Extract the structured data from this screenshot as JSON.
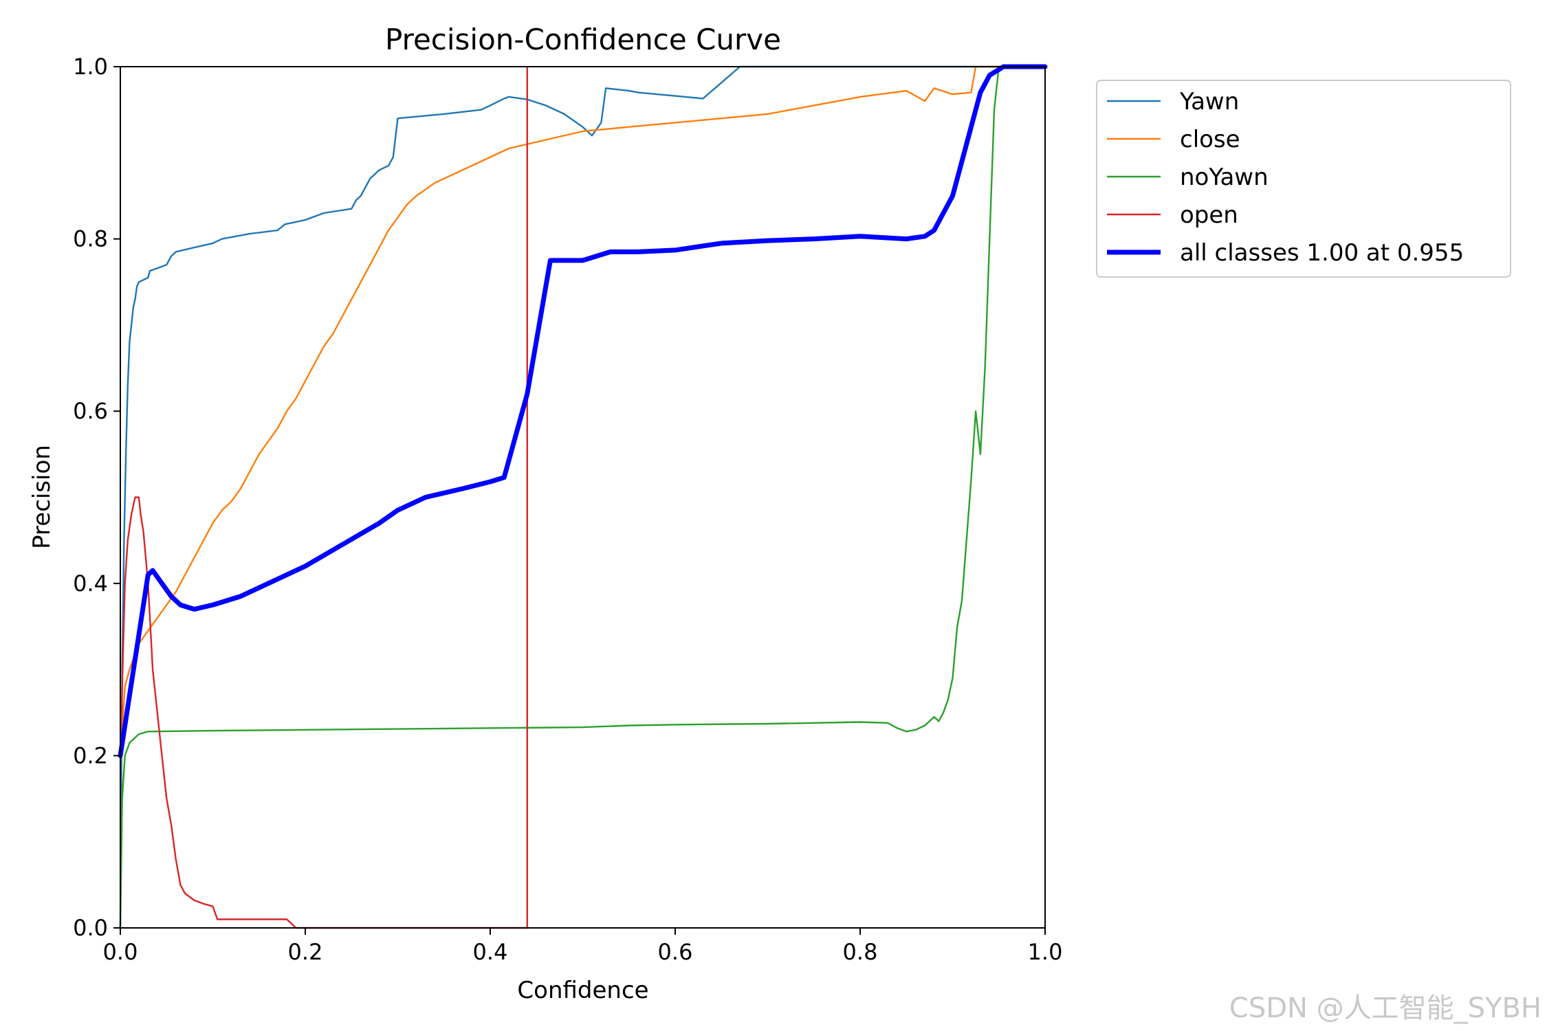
{
  "chart_data": {
    "type": "line",
    "title": "Precision-Confidence Curve",
    "xlabel": "Confidence",
    "ylabel": "Precision",
    "xlim": [
      0,
      1
    ],
    "ylim": [
      0,
      1
    ],
    "xticks": [
      "0.0",
      "0.2",
      "0.4",
      "0.6",
      "0.8",
      "1.0"
    ],
    "yticks": [
      "0.0",
      "0.2",
      "0.4",
      "0.6",
      "0.8",
      "1.0"
    ],
    "grid": false,
    "legend_position": "outside-top-right",
    "series": [
      {
        "name": "Yawn",
        "color": "#1f77b4",
        "width": "thin",
        "points": [
          [
            0.0,
            0.0
          ],
          [
            0.002,
            0.3
          ],
          [
            0.004,
            0.45
          ],
          [
            0.006,
            0.55
          ],
          [
            0.008,
            0.63
          ],
          [
            0.01,
            0.68
          ],
          [
            0.012,
            0.7
          ],
          [
            0.014,
            0.72
          ],
          [
            0.016,
            0.73
          ],
          [
            0.018,
            0.745
          ],
          [
            0.02,
            0.75
          ],
          [
            0.03,
            0.755
          ],
          [
            0.032,
            0.763
          ],
          [
            0.04,
            0.766
          ],
          [
            0.05,
            0.77
          ],
          [
            0.055,
            0.78
          ],
          [
            0.06,
            0.785
          ],
          [
            0.08,
            0.79
          ],
          [
            0.1,
            0.795
          ],
          [
            0.11,
            0.8
          ],
          [
            0.14,
            0.806
          ],
          [
            0.17,
            0.81
          ],
          [
            0.178,
            0.817
          ],
          [
            0.2,
            0.822
          ],
          [
            0.22,
            0.83
          ],
          [
            0.25,
            0.835
          ],
          [
            0.255,
            0.845
          ],
          [
            0.26,
            0.85
          ],
          [
            0.27,
            0.87
          ],
          [
            0.28,
            0.88
          ],
          [
            0.29,
            0.885
          ],
          [
            0.295,
            0.895
          ],
          [
            0.3,
            0.94
          ],
          [
            0.35,
            0.945
          ],
          [
            0.39,
            0.95
          ],
          [
            0.4,
            0.955
          ],
          [
            0.415,
            0.963
          ],
          [
            0.42,
            0.965
          ],
          [
            0.44,
            0.962
          ],
          [
            0.46,
            0.955
          ],
          [
            0.48,
            0.945
          ],
          [
            0.5,
            0.93
          ],
          [
            0.51,
            0.92
          ],
          [
            0.52,
            0.935
          ],
          [
            0.525,
            0.975
          ],
          [
            0.55,
            0.972
          ],
          [
            0.56,
            0.97
          ],
          [
            0.6,
            0.966
          ],
          [
            0.63,
            0.963
          ],
          [
            0.67,
            1.0
          ],
          [
            1.0,
            1.0
          ]
        ]
      },
      {
        "name": "close",
        "color": "#ff7f0e",
        "width": "thin",
        "points": [
          [
            0.0,
            0.2
          ],
          [
            0.005,
            0.28
          ],
          [
            0.01,
            0.3
          ],
          [
            0.02,
            0.33
          ],
          [
            0.03,
            0.345
          ],
          [
            0.04,
            0.36
          ],
          [
            0.05,
            0.375
          ],
          [
            0.06,
            0.39
          ],
          [
            0.07,
            0.41
          ],
          [
            0.08,
            0.43
          ],
          [
            0.09,
            0.45
          ],
          [
            0.1,
            0.47
          ],
          [
            0.11,
            0.485
          ],
          [
            0.12,
            0.495
          ],
          [
            0.13,
            0.51
          ],
          [
            0.14,
            0.53
          ],
          [
            0.15,
            0.55
          ],
          [
            0.16,
            0.565
          ],
          [
            0.17,
            0.58
          ],
          [
            0.18,
            0.6
          ],
          [
            0.19,
            0.615
          ],
          [
            0.2,
            0.635
          ],
          [
            0.21,
            0.655
          ],
          [
            0.22,
            0.675
          ],
          [
            0.23,
            0.69
          ],
          [
            0.24,
            0.71
          ],
          [
            0.25,
            0.73
          ],
          [
            0.26,
            0.75
          ],
          [
            0.27,
            0.77
          ],
          [
            0.28,
            0.79
          ],
          [
            0.29,
            0.81
          ],
          [
            0.3,
            0.825
          ],
          [
            0.31,
            0.84
          ],
          [
            0.32,
            0.85
          ],
          [
            0.34,
            0.865
          ],
          [
            0.36,
            0.875
          ],
          [
            0.38,
            0.885
          ],
          [
            0.4,
            0.895
          ],
          [
            0.42,
            0.905
          ],
          [
            0.44,
            0.91
          ],
          [
            0.46,
            0.915
          ],
          [
            0.5,
            0.925
          ],
          [
            0.55,
            0.93
          ],
          [
            0.6,
            0.935
          ],
          [
            0.65,
            0.94
          ],
          [
            0.7,
            0.945
          ],
          [
            0.75,
            0.955
          ],
          [
            0.8,
            0.965
          ],
          [
            0.85,
            0.972
          ],
          [
            0.87,
            0.96
          ],
          [
            0.88,
            0.975
          ],
          [
            0.9,
            0.968
          ],
          [
            0.92,
            0.97
          ],
          [
            0.925,
            1.0
          ],
          [
            1.0,
            1.0
          ]
        ]
      },
      {
        "name": "noYawn",
        "color": "#2ca02c",
        "width": "thin",
        "points": [
          [
            0.0,
            0.0
          ],
          [
            0.002,
            0.15
          ],
          [
            0.005,
            0.2
          ],
          [
            0.01,
            0.215
          ],
          [
            0.02,
            0.225
          ],
          [
            0.03,
            0.228
          ],
          [
            0.1,
            0.229
          ],
          [
            0.2,
            0.23
          ],
          [
            0.3,
            0.231
          ],
          [
            0.4,
            0.232
          ],
          [
            0.5,
            0.233
          ],
          [
            0.55,
            0.235
          ],
          [
            0.6,
            0.236
          ],
          [
            0.7,
            0.237
          ],
          [
            0.75,
            0.238
          ],
          [
            0.8,
            0.239
          ],
          [
            0.83,
            0.238
          ],
          [
            0.84,
            0.232
          ],
          [
            0.85,
            0.228
          ],
          [
            0.86,
            0.23
          ],
          [
            0.87,
            0.235
          ],
          [
            0.88,
            0.245
          ],
          [
            0.885,
            0.24
          ],
          [
            0.89,
            0.25
          ],
          [
            0.895,
            0.265
          ],
          [
            0.9,
            0.29
          ],
          [
            0.905,
            0.35
          ],
          [
            0.91,
            0.38
          ],
          [
            0.915,
            0.45
          ],
          [
            0.92,
            0.52
          ],
          [
            0.925,
            0.6
          ],
          [
            0.93,
            0.55
          ],
          [
            0.935,
            0.65
          ],
          [
            0.94,
            0.8
          ],
          [
            0.945,
            0.95
          ],
          [
            0.95,
            1.0
          ],
          [
            1.0,
            1.0
          ]
        ]
      },
      {
        "name": "open",
        "color": "#d62728",
        "width": "thin",
        "points": [
          [
            0.0,
            0.2
          ],
          [
            0.005,
            0.4
          ],
          [
            0.008,
            0.45
          ],
          [
            0.012,
            0.48
          ],
          [
            0.016,
            0.5
          ],
          [
            0.02,
            0.5
          ],
          [
            0.022,
            0.48
          ],
          [
            0.025,
            0.46
          ],
          [
            0.03,
            0.4
          ],
          [
            0.035,
            0.3
          ],
          [
            0.04,
            0.25
          ],
          [
            0.045,
            0.2
          ],
          [
            0.05,
            0.15
          ],
          [
            0.055,
            0.12
          ],
          [
            0.06,
            0.08
          ],
          [
            0.065,
            0.05
          ],
          [
            0.07,
            0.04
          ],
          [
            0.08,
            0.032
          ],
          [
            0.09,
            0.028
          ],
          [
            0.1,
            0.025
          ],
          [
            0.105,
            0.01
          ],
          [
            0.15,
            0.01
          ],
          [
            0.18,
            0.01
          ],
          [
            0.19,
            0.0
          ],
          [
            0.44,
            0.0
          ],
          [
            0.44,
            1.0
          ]
        ]
      },
      {
        "name": "all classes 1.00 at 0.955",
        "color": "#0000ff",
        "width": "thick",
        "points": [
          [
            0.0,
            0.2
          ],
          [
            0.01,
            0.27
          ],
          [
            0.02,
            0.34
          ],
          [
            0.03,
            0.41
          ],
          [
            0.035,
            0.415
          ],
          [
            0.045,
            0.4
          ],
          [
            0.055,
            0.385
          ],
          [
            0.065,
            0.375
          ],
          [
            0.08,
            0.37
          ],
          [
            0.1,
            0.375
          ],
          [
            0.13,
            0.385
          ],
          [
            0.16,
            0.4
          ],
          [
            0.2,
            0.42
          ],
          [
            0.24,
            0.445
          ],
          [
            0.28,
            0.47
          ],
          [
            0.3,
            0.485
          ],
          [
            0.33,
            0.5
          ],
          [
            0.37,
            0.51
          ],
          [
            0.4,
            0.518
          ],
          [
            0.415,
            0.523
          ],
          [
            0.44,
            0.62
          ],
          [
            0.465,
            0.775
          ],
          [
            0.5,
            0.775
          ],
          [
            0.53,
            0.785
          ],
          [
            0.56,
            0.785
          ],
          [
            0.6,
            0.787
          ],
          [
            0.65,
            0.795
          ],
          [
            0.7,
            0.798
          ],
          [
            0.75,
            0.8
          ],
          [
            0.8,
            0.803
          ],
          [
            0.85,
            0.8
          ],
          [
            0.87,
            0.803
          ],
          [
            0.88,
            0.81
          ],
          [
            0.89,
            0.83
          ],
          [
            0.9,
            0.85
          ],
          [
            0.91,
            0.89
          ],
          [
            0.92,
            0.93
          ],
          [
            0.93,
            0.97
          ],
          [
            0.94,
            0.99
          ],
          [
            0.955,
            1.0
          ],
          [
            1.0,
            1.0
          ]
        ]
      }
    ]
  },
  "watermark": "CSDN @人工智能_SYBH"
}
